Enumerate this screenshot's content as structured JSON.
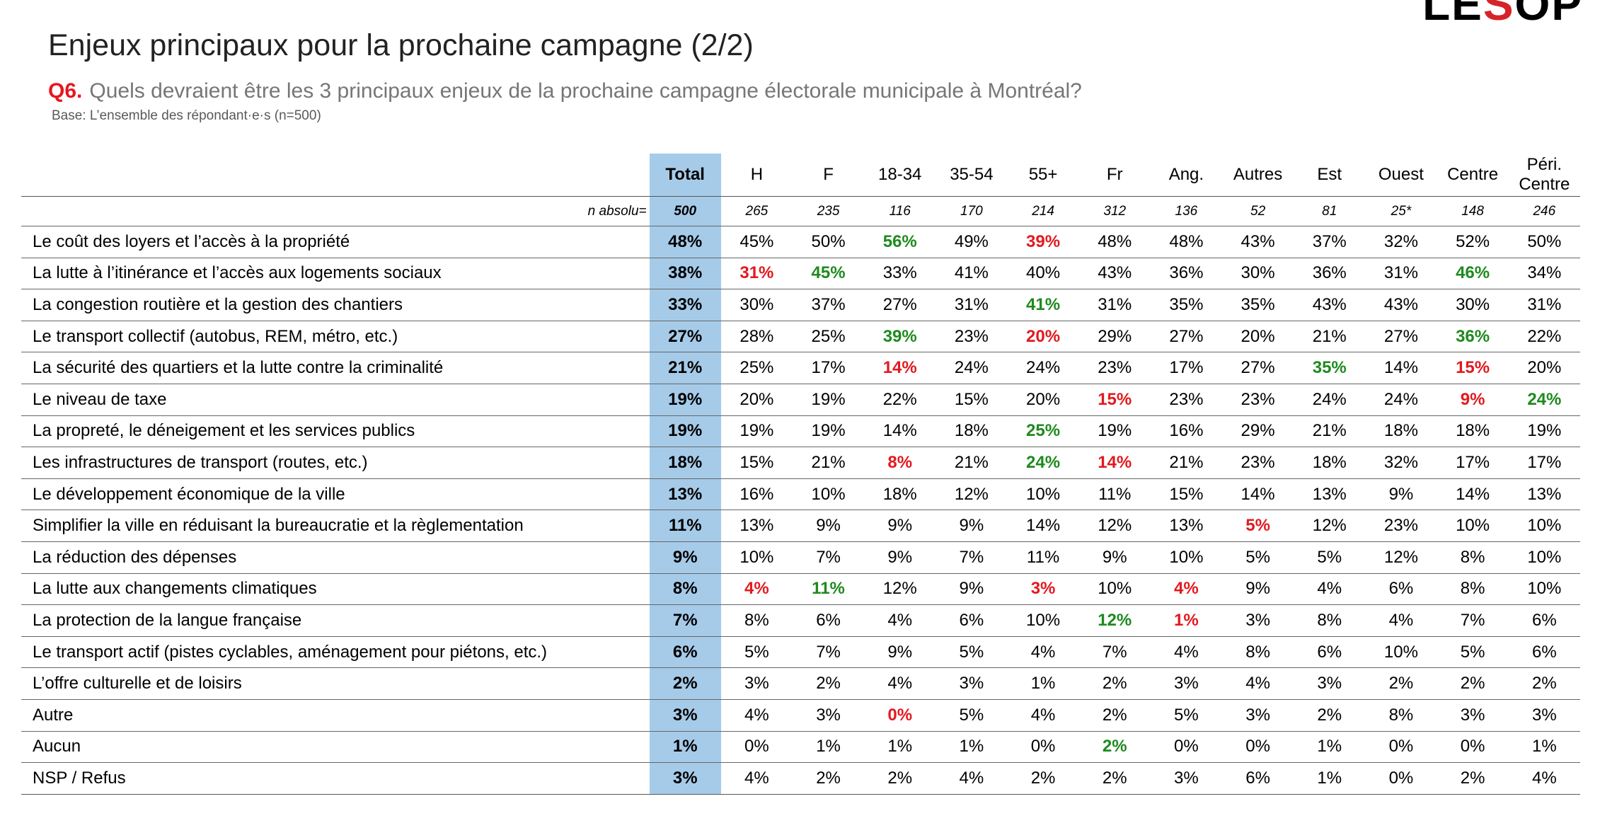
{
  "logo": {
    "prefix": "LE",
    "s": "S",
    "suffix": "OP"
  },
  "title": "Enjeux principaux pour la prochaine campagne (2/2)",
  "question": {
    "number": "Q6.",
    "text": "Quels devraient être les 3 principaux enjeux de la prochaine campagne électorale municipale à Montréal?"
  },
  "base": "Base: L’ensemble des répondant·e·s (n=500)",
  "colors": {
    "total_bg": "#a6cbe9",
    "sig_up": "#1e8a1e",
    "sig_down": "#e3191f"
  },
  "table": {
    "columns": [
      "Total",
      "H",
      "F",
      "18-34",
      "35-54",
      "55+",
      "Fr",
      "Ang.",
      "Autres",
      "Est",
      "Ouest",
      "Centre",
      "Péri. Centre"
    ],
    "n_label": "n absolu=",
    "n_values": [
      "500",
      "265",
      "235",
      "116",
      "170",
      "214",
      "312",
      "136",
      "52",
      "81",
      "25*",
      "148",
      "246"
    ],
    "rows": [
      {
        "label": "Le coût des loyers et l’accès à la propriété",
        "values": [
          "48%",
          "45%",
          "50%",
          "56%",
          "49%",
          "39%",
          "48%",
          "48%",
          "43%",
          "37%",
          "32%",
          "52%",
          "50%"
        ],
        "sig": [
          "",
          "",
          "",
          "up",
          "",
          "down",
          "",
          "",
          "",
          "",
          "",
          "",
          ""
        ]
      },
      {
        "label": "La lutte à l’itinérance et l’accès aux logements sociaux",
        "values": [
          "38%",
          "31%",
          "45%",
          "33%",
          "41%",
          "40%",
          "43%",
          "36%",
          "30%",
          "36%",
          "31%",
          "46%",
          "34%"
        ],
        "sig": [
          "",
          "down",
          "up",
          "",
          "",
          "",
          "",
          "",
          "",
          "",
          "",
          "up",
          ""
        ]
      },
      {
        "label": "La congestion routière et la gestion des chantiers",
        "values": [
          "33%",
          "30%",
          "37%",
          "27%",
          "31%",
          "41%",
          "31%",
          "35%",
          "35%",
          "43%",
          "43%",
          "30%",
          "31%"
        ],
        "sig": [
          "",
          "",
          "",
          "",
          "",
          "up",
          "",
          "",
          "",
          "",
          "",
          "",
          ""
        ]
      },
      {
        "label": "Le transport collectif (autobus, REM, métro, etc.)",
        "values": [
          "27%",
          "28%",
          "25%",
          "39%",
          "23%",
          "20%",
          "29%",
          "27%",
          "20%",
          "21%",
          "27%",
          "36%",
          "22%"
        ],
        "sig": [
          "",
          "",
          "",
          "up",
          "",
          "down",
          "",
          "",
          "",
          "",
          "",
          "up",
          ""
        ]
      },
      {
        "label": "La sécurité des quartiers et la lutte contre la criminalité",
        "values": [
          "21%",
          "25%",
          "17%",
          "14%",
          "24%",
          "24%",
          "23%",
          "17%",
          "27%",
          "35%",
          "14%",
          "15%",
          "20%"
        ],
        "sig": [
          "",
          "",
          "",
          "down",
          "",
          "",
          "",
          "",
          "",
          "up",
          "",
          "down",
          ""
        ]
      },
      {
        "label": "Le niveau de taxe",
        "values": [
          "19%",
          "20%",
          "19%",
          "22%",
          "15%",
          "20%",
          "15%",
          "23%",
          "23%",
          "24%",
          "24%",
          "9%",
          "24%"
        ],
        "sig": [
          "",
          "",
          "",
          "",
          "",
          "",
          "down",
          "",
          "",
          "",
          "",
          "down",
          "up"
        ]
      },
      {
        "label": "La propreté, le déneigement et les services publics",
        "values": [
          "19%",
          "19%",
          "19%",
          "14%",
          "18%",
          "25%",
          "19%",
          "16%",
          "29%",
          "21%",
          "18%",
          "18%",
          "19%"
        ],
        "sig": [
          "",
          "",
          "",
          "",
          "",
          "up",
          "",
          "",
          "",
          "",
          "",
          "",
          ""
        ]
      },
      {
        "label": "Les infrastructures de transport (routes, etc.)",
        "values": [
          "18%",
          "15%",
          "21%",
          "8%",
          "21%",
          "24%",
          "14%",
          "21%",
          "23%",
          "18%",
          "32%",
          "17%",
          "17%"
        ],
        "sig": [
          "",
          "",
          "",
          "down",
          "",
          "up",
          "down",
          "",
          "",
          "",
          "",
          "",
          ""
        ]
      },
      {
        "label": "Le développement économique de la ville",
        "values": [
          "13%",
          "16%",
          "10%",
          "18%",
          "12%",
          "10%",
          "11%",
          "15%",
          "14%",
          "13%",
          "9%",
          "14%",
          "13%"
        ],
        "sig": [
          "",
          "",
          "",
          "",
          "",
          "",
          "",
          "",
          "",
          "",
          "",
          "",
          ""
        ]
      },
      {
        "label": "Simplifier la ville en réduisant la bureaucratie et la règlementation",
        "values": [
          "11%",
          "13%",
          "9%",
          "9%",
          "9%",
          "14%",
          "12%",
          "13%",
          "5%",
          "12%",
          "23%",
          "10%",
          "10%"
        ],
        "sig": [
          "",
          "",
          "",
          "",
          "",
          "",
          "",
          "",
          "down",
          "",
          "",
          "",
          ""
        ]
      },
      {
        "label": "La réduction des dépenses",
        "values": [
          "9%",
          "10%",
          "7%",
          "9%",
          "7%",
          "11%",
          "9%",
          "10%",
          "5%",
          "5%",
          "12%",
          "8%",
          "10%"
        ],
        "sig": [
          "",
          "",
          "",
          "",
          "",
          "",
          "",
          "",
          "",
          "",
          "",
          "",
          ""
        ]
      },
      {
        "label": "La lutte aux changements climatiques",
        "values": [
          "8%",
          "4%",
          "11%",
          "12%",
          "9%",
          "3%",
          "10%",
          "4%",
          "9%",
          "4%",
          "6%",
          "8%",
          "10%"
        ],
        "sig": [
          "",
          "down",
          "up",
          "",
          "",
          "down",
          "",
          "down",
          "",
          "",
          "",
          "",
          ""
        ]
      },
      {
        "label": "La protection de la langue française",
        "values": [
          "7%",
          "8%",
          "6%",
          "4%",
          "6%",
          "10%",
          "12%",
          "1%",
          "3%",
          "8%",
          "4%",
          "7%",
          "6%"
        ],
        "sig": [
          "",
          "",
          "",
          "",
          "",
          "",
          "up",
          "down",
          "",
          "",
          "",
          "",
          ""
        ]
      },
      {
        "label": "Le transport actif (pistes cyclables, aménagement pour piétons, etc.)",
        "values": [
          "6%",
          "5%",
          "7%",
          "9%",
          "5%",
          "4%",
          "7%",
          "4%",
          "8%",
          "6%",
          "10%",
          "5%",
          "6%"
        ],
        "sig": [
          "",
          "",
          "",
          "",
          "",
          "",
          "",
          "",
          "",
          "",
          "",
          "",
          ""
        ]
      },
      {
        "label": "L’offre culturelle et de loisirs",
        "values": [
          "2%",
          "3%",
          "2%",
          "4%",
          "3%",
          "1%",
          "2%",
          "3%",
          "4%",
          "3%",
          "2%",
          "2%",
          "2%"
        ],
        "sig": [
          "",
          "",
          "",
          "",
          "",
          "",
          "",
          "",
          "",
          "",
          "",
          "",
          ""
        ]
      },
      {
        "label": "Autre",
        "values": [
          "3%",
          "4%",
          "3%",
          "0%",
          "5%",
          "4%",
          "2%",
          "5%",
          "3%",
          "2%",
          "8%",
          "3%",
          "3%"
        ],
        "sig": [
          "",
          "",
          "",
          "down",
          "",
          "",
          "",
          "",
          "",
          "",
          "",
          "",
          ""
        ]
      },
      {
        "label": "Aucun",
        "values": [
          "1%",
          "0%",
          "1%",
          "1%",
          "1%",
          "0%",
          "2%",
          "0%",
          "0%",
          "1%",
          "0%",
          "0%",
          "1%"
        ],
        "sig": [
          "",
          "",
          "",
          "",
          "",
          "",
          "up",
          "",
          "",
          "",
          "",
          "",
          ""
        ]
      },
      {
        "label": "NSP / Refus",
        "values": [
          "3%",
          "4%",
          "2%",
          "2%",
          "4%",
          "2%",
          "2%",
          "3%",
          "6%",
          "1%",
          "0%",
          "2%",
          "4%"
        ],
        "sig": [
          "",
          "",
          "",
          "",
          "",
          "",
          "",
          "",
          "",
          "",
          "",
          "",
          ""
        ]
      }
    ]
  }
}
